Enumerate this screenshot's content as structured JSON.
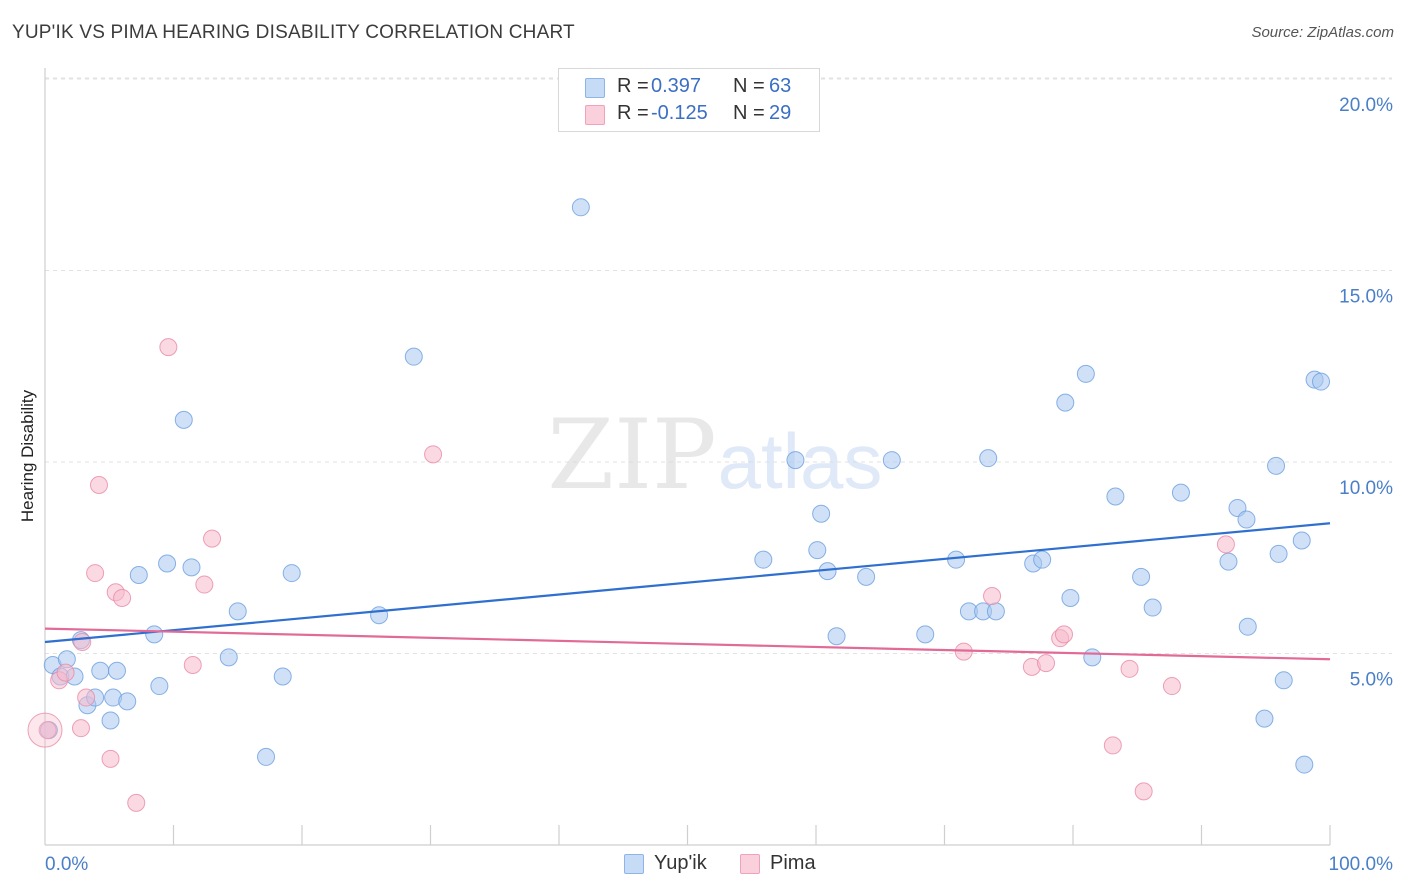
{
  "header": {
    "title": "YUP'IK VS PIMA HEARING DISABILITY CORRELATION CHART",
    "source": "Source: ZipAtlas.com"
  },
  "watermark": {
    "zip": "ZIP",
    "atlas": "atlas"
  },
  "legend": {
    "r_label": "R =",
    "n_label": "N =",
    "series": [
      {
        "name": "Yup'ik",
        "r": "0.397",
        "n": "63",
        "fill": "#a9c8f0",
        "stroke": "#6c9fe0"
      },
      {
        "name": "Pima",
        "r": "-0.125",
        "n": "29",
        "fill": "#f7b9cc",
        "stroke": "#e88aa6"
      }
    ]
  },
  "colors": {
    "blue_line": "#2f6fcf",
    "pink_line": "#e26a96",
    "tick_text": "#4a7fc8",
    "grid": "#e2e2e2"
  },
  "chart_data": {
    "type": "scatter",
    "title": "YUP'IK VS PIMA HEARING DISABILITY CORRELATION CHART",
    "xlabel": "",
    "ylabel": "Hearing Disability",
    "xlim": [
      0,
      100
    ],
    "ylim": [
      0,
      20.5
    ],
    "y_ticks": [
      {
        "value": 5,
        "label": "5.0%"
      },
      {
        "value": 10,
        "label": "10.0%"
      },
      {
        "value": 15,
        "label": "15.0%"
      },
      {
        "value": 20,
        "label": "20.0%"
      }
    ],
    "x_tick_labels": [
      {
        "value": 0,
        "label": "0.0%"
      },
      {
        "value": 100,
        "label": "100.0%"
      }
    ],
    "x_minor_ticks": [
      10,
      20,
      30,
      40,
      50,
      60,
      70,
      80,
      90,
      100
    ],
    "grid": true,
    "series": [
      {
        "name": "Yup'ik",
        "color": "#a9c8f0",
        "trend": {
          "x": [
            0,
            100
          ],
          "y": [
            5.3,
            8.4
          ]
        },
        "points": [
          {
            "x": 0.3,
            "y": 3.0
          },
          {
            "x": 0.6,
            "y": 4.7
          },
          {
            "x": 1.2,
            "y": 4.4
          },
          {
            "x": 1.7,
            "y": 4.85
          },
          {
            "x": 2.3,
            "y": 4.4
          },
          {
            "x": 2.8,
            "y": 5.35
          },
          {
            "x": 3.3,
            "y": 3.65
          },
          {
            "x": 3.9,
            "y": 3.85
          },
          {
            "x": 4.3,
            "y": 4.55
          },
          {
            "x": 5.1,
            "y": 3.25
          },
          {
            "x": 5.3,
            "y": 3.85
          },
          {
            "x": 5.6,
            "y": 4.55
          },
          {
            "x": 6.4,
            "y": 3.75
          },
          {
            "x": 7.3,
            "y": 7.05
          },
          {
            "x": 8.5,
            "y": 5.5
          },
          {
            "x": 8.9,
            "y": 4.15
          },
          {
            "x": 9.5,
            "y": 7.35
          },
          {
            "x": 10.8,
            "y": 11.1
          },
          {
            "x": 11.4,
            "y": 7.25
          },
          {
            "x": 14.3,
            "y": 4.9
          },
          {
            "x": 15.0,
            "y": 6.1
          },
          {
            "x": 17.2,
            "y": 2.3
          },
          {
            "x": 18.5,
            "y": 4.4
          },
          {
            "x": 19.2,
            "y": 7.1
          },
          {
            "x": 26.0,
            "y": 6.0
          },
          {
            "x": 28.7,
            "y": 12.75
          },
          {
            "x": 41.7,
            "y": 16.65
          },
          {
            "x": 55.9,
            "y": 7.45
          },
          {
            "x": 58.4,
            "y": 10.05
          },
          {
            "x": 60.1,
            "y": 7.7
          },
          {
            "x": 60.4,
            "y": 8.65
          },
          {
            "x": 60.9,
            "y": 7.15
          },
          {
            "x": 61.6,
            "y": 5.45
          },
          {
            "x": 63.9,
            "y": 7.0
          },
          {
            "x": 65.9,
            "y": 10.05
          },
          {
            "x": 68.5,
            "y": 5.5
          },
          {
            "x": 70.9,
            "y": 7.45
          },
          {
            "x": 71.9,
            "y": 6.1
          },
          {
            "x": 73.0,
            "y": 6.1
          },
          {
            "x": 73.4,
            "y": 10.1
          },
          {
            "x": 74.0,
            "y": 6.1
          },
          {
            "x": 76.9,
            "y": 7.35
          },
          {
            "x": 77.6,
            "y": 7.45
          },
          {
            "x": 79.4,
            "y": 11.55
          },
          {
            "x": 79.8,
            "y": 6.45
          },
          {
            "x": 81.0,
            "y": 12.3
          },
          {
            "x": 81.5,
            "y": 4.9
          },
          {
            "x": 83.3,
            "y": 9.1
          },
          {
            "x": 85.3,
            "y": 7.0
          },
          {
            "x": 86.2,
            "y": 6.2
          },
          {
            "x": 88.4,
            "y": 9.2
          },
          {
            "x": 92.1,
            "y": 7.4
          },
          {
            "x": 92.8,
            "y": 8.8
          },
          {
            "x": 93.5,
            "y": 8.5
          },
          {
            "x": 93.6,
            "y": 5.7
          },
          {
            "x": 94.9,
            "y": 3.3
          },
          {
            "x": 95.8,
            "y": 9.9
          },
          {
            "x": 96.0,
            "y": 7.6
          },
          {
            "x": 96.4,
            "y": 4.3
          },
          {
            "x": 97.8,
            "y": 7.95
          },
          {
            "x": 98.0,
            "y": 2.1
          },
          {
            "x": 98.8,
            "y": 12.15
          },
          {
            "x": 99.3,
            "y": 12.1
          }
        ]
      },
      {
        "name": "Pima",
        "color": "#f7b9cc",
        "trend": {
          "x": [
            0,
            100
          ],
          "y": [
            5.65,
            4.85
          ]
        },
        "points": [
          {
            "x": 0.2,
            "y": 3.0
          },
          {
            "x": 1.1,
            "y": 4.3
          },
          {
            "x": 1.6,
            "y": 4.5
          },
          {
            "x": 2.8,
            "y": 3.05
          },
          {
            "x": 2.9,
            "y": 5.3
          },
          {
            "x": 3.2,
            "y": 3.85
          },
          {
            "x": 3.9,
            "y": 7.1
          },
          {
            "x": 4.2,
            "y": 9.4
          },
          {
            "x": 5.1,
            "y": 2.25
          },
          {
            "x": 5.5,
            "y": 6.6
          },
          {
            "x": 6.0,
            "y": 6.45
          },
          {
            "x": 7.1,
            "y": 1.1
          },
          {
            "x": 9.6,
            "y": 13.0
          },
          {
            "x": 11.5,
            "y": 4.7
          },
          {
            "x": 12.4,
            "y": 6.8
          },
          {
            "x": 13.0,
            "y": 8.0
          },
          {
            "x": 30.2,
            "y": 10.2
          },
          {
            "x": 71.5,
            "y": 5.05
          },
          {
            "x": 73.7,
            "y": 6.5
          },
          {
            "x": 76.8,
            "y": 4.65
          },
          {
            "x": 77.9,
            "y": 4.75
          },
          {
            "x": 79.0,
            "y": 5.4
          },
          {
            "x": 79.3,
            "y": 5.5
          },
          {
            "x": 83.1,
            "y": 2.6
          },
          {
            "x": 84.4,
            "y": 4.6
          },
          {
            "x": 85.5,
            "y": 1.4
          },
          {
            "x": 87.7,
            "y": 4.15
          },
          {
            "x": 91.9,
            "y": 7.85
          },
          {
            "x": 0.0,
            "y": 3.0
          }
        ]
      }
    ]
  }
}
